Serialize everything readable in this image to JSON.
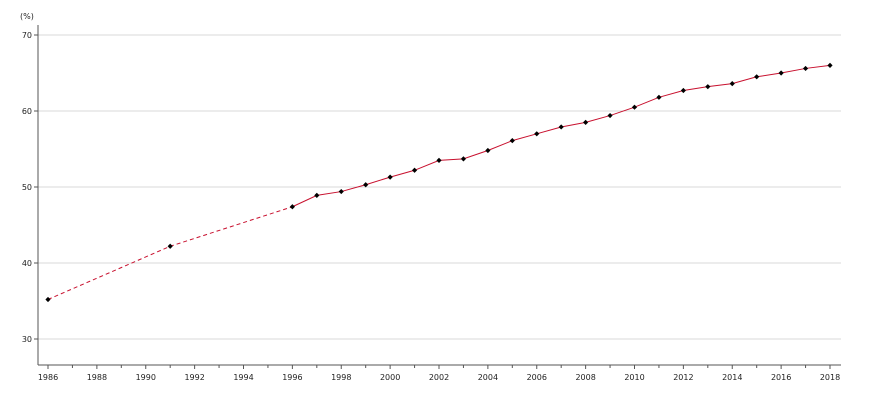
{
  "chart_data": {
    "type": "line",
    "title": "",
    "xlabel": "",
    "ylabel": "(%)",
    "xlim": [
      1986,
      2018
    ],
    "ylim": [
      27,
      71
    ],
    "grid": "horizontal",
    "legend": "none",
    "line_color": "#c8102e",
    "marker_color": "#000000",
    "grid_color": "#d9d9d9",
    "x_ticks": [
      "1986",
      "1988",
      "1990",
      "1992",
      "1994",
      "1996",
      "1998",
      "2000",
      "2002",
      "2004",
      "2006",
      "2008",
      "2010",
      "2012",
      "2014",
      "2016",
      "2018"
    ],
    "y_ticks": [
      "30",
      "40",
      "50",
      "60",
      "70"
    ],
    "series": [
      {
        "x": [
          1986,
          1991,
          1996,
          1997,
          1998,
          1999,
          2000,
          2001,
          2002,
          2003,
          2004,
          2005,
          2006,
          2007,
          2008,
          2009,
          2010,
          2011,
          2012,
          2013,
          2014,
          2015,
          2016,
          2017,
          2018
        ],
        "values": [
          35.2,
          42.2,
          47.4,
          48.9,
          49.4,
          50.3,
          51.3,
          52.2,
          53.5,
          53.7,
          54.8,
          56.1,
          57.0,
          57.9,
          58.5,
          59.4,
          60.5,
          61.8,
          62.7,
          63.2,
          63.6,
          64.5,
          65.0,
          65.6,
          66.0
        ],
        "dashed_until": 1996
      }
    ]
  }
}
